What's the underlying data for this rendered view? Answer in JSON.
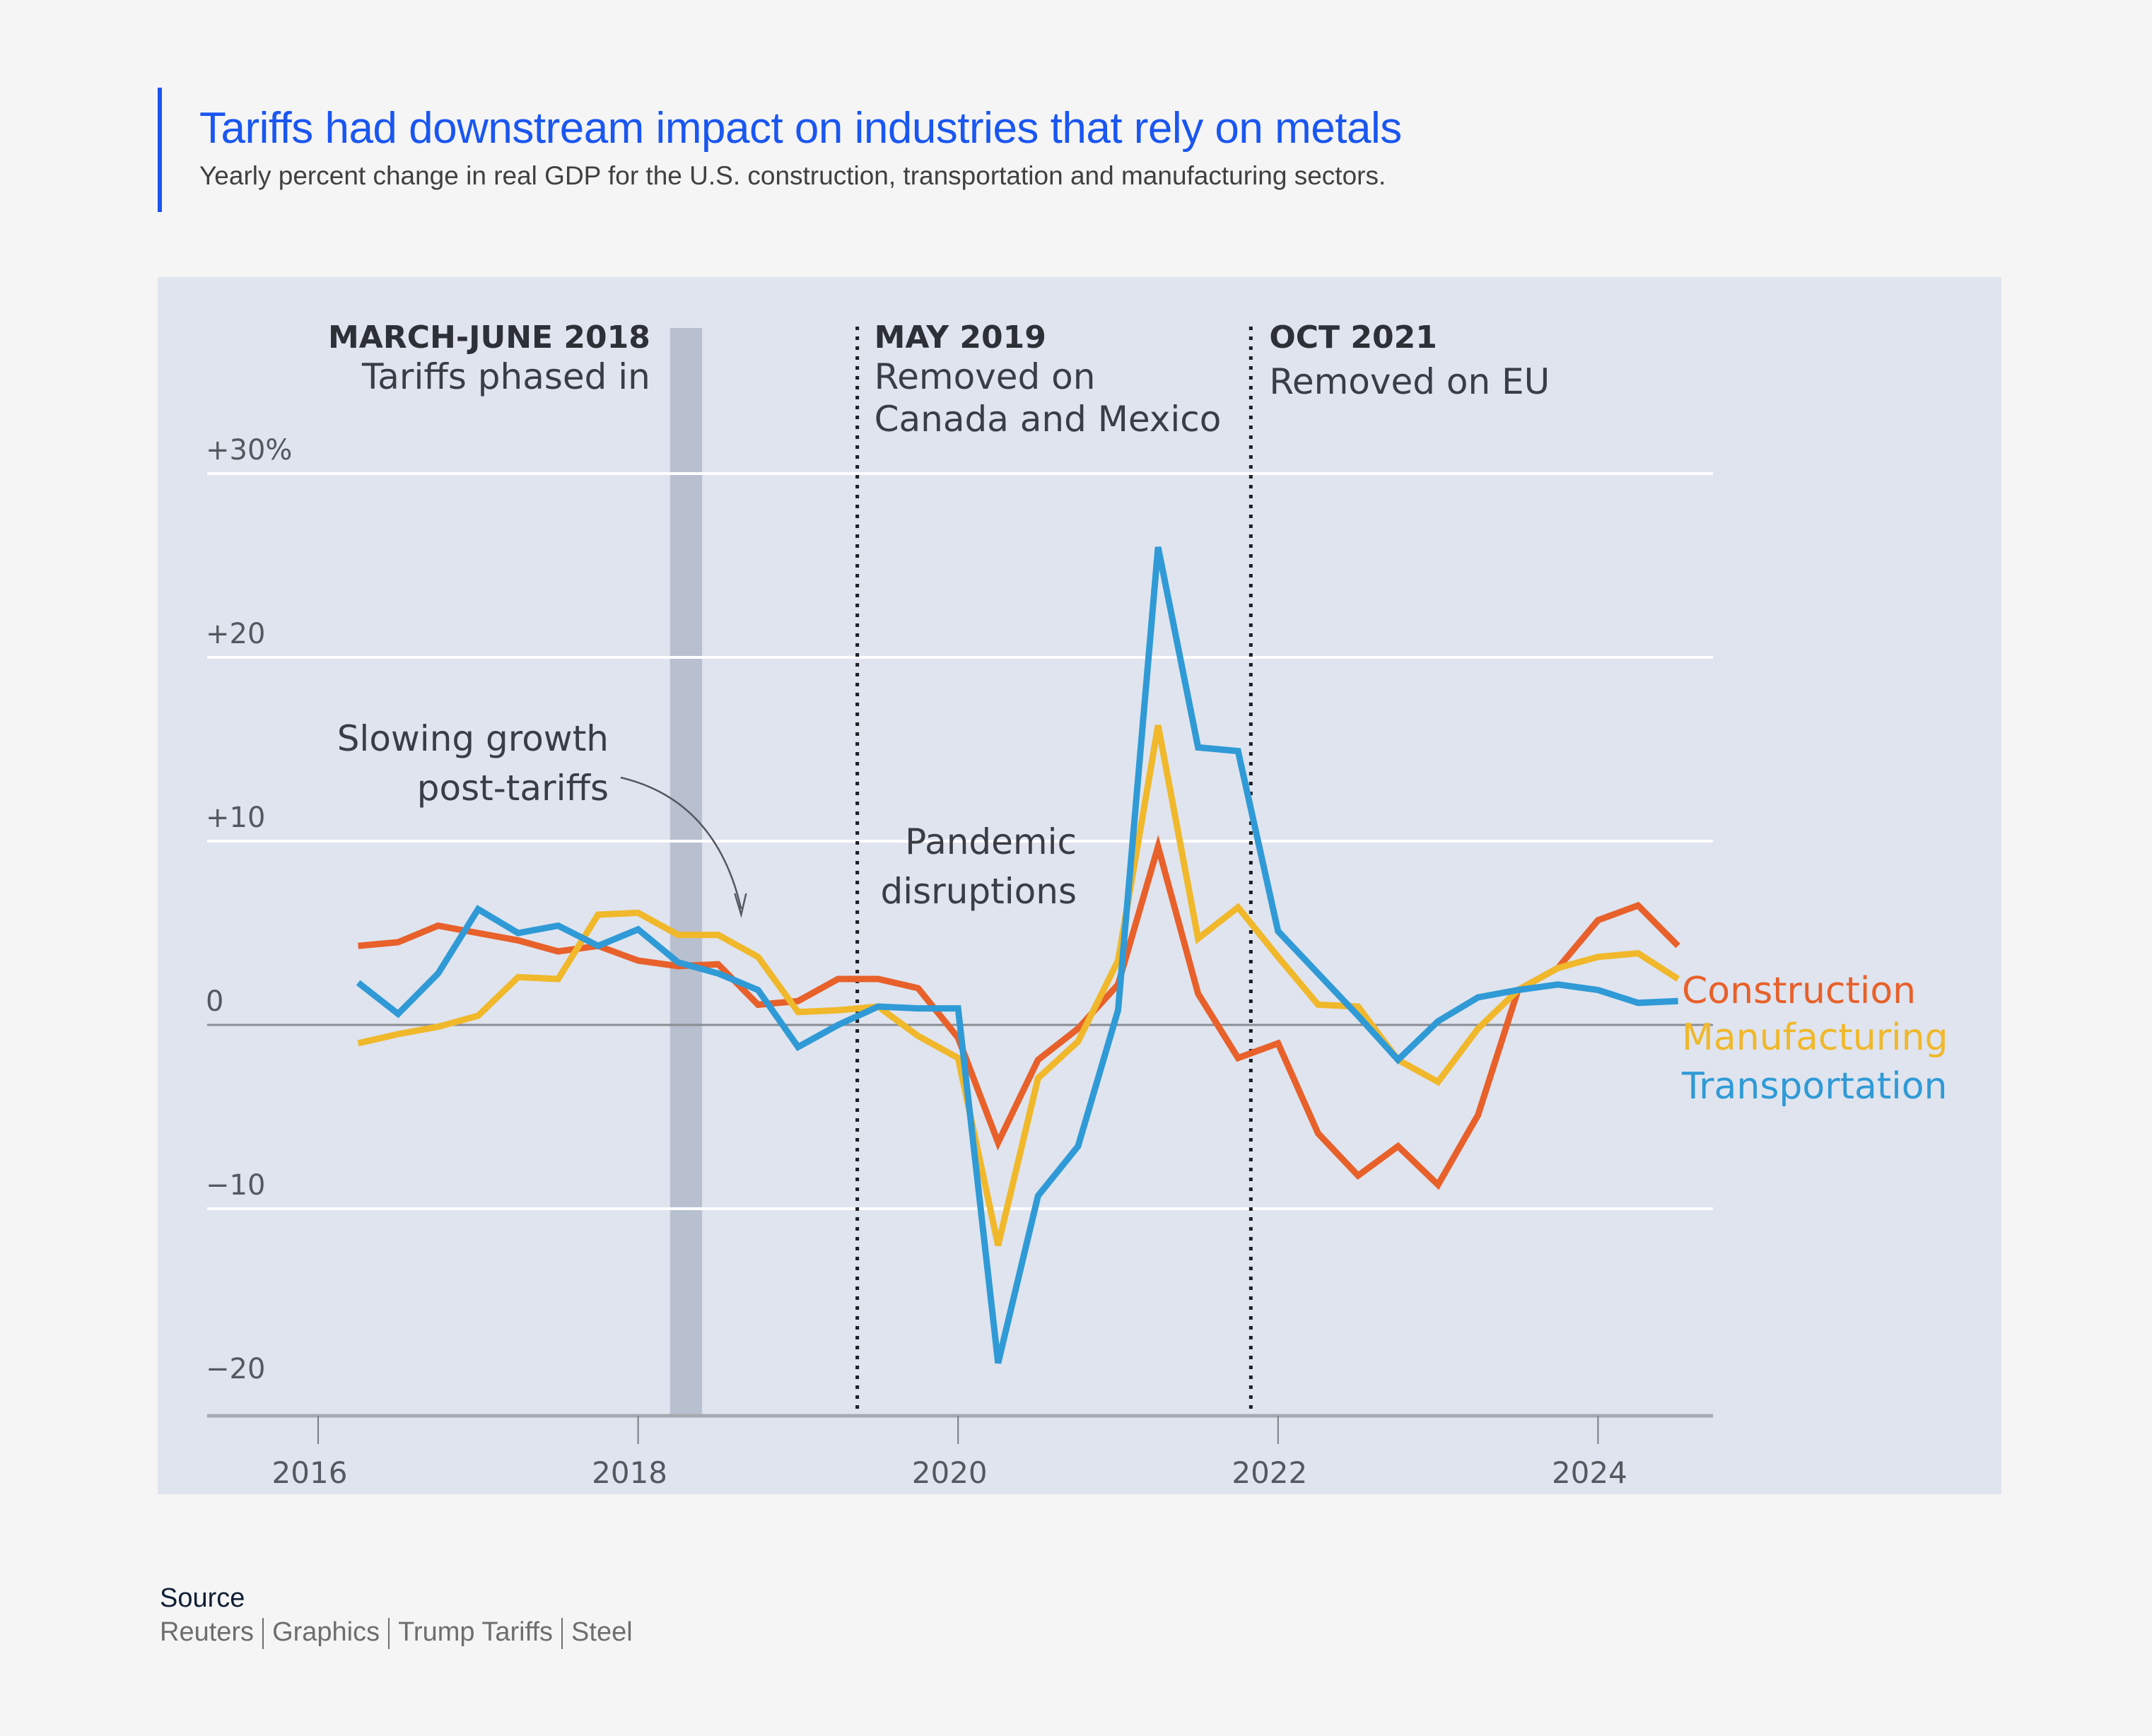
{
  "header": {
    "title": "Tariffs had downstream impact on industries that rely on metals",
    "subtitle": "Yearly percent change in real GDP for the U.S. construction, transportation and manufacturing sectors."
  },
  "footer": {
    "source_label": "Source",
    "links": [
      "Reuters",
      "Graphics",
      "Trump Tariffs",
      "Steel"
    ]
  },
  "colors": {
    "accent": "#1a56f0",
    "construction": "#e8602a",
    "manufacturing": "#f0b82a",
    "transportation": "#2f9ad6",
    "shaded_band": "#b8bfcf",
    "panel": "#dfe4ee"
  },
  "chart_data": {
    "type": "line",
    "title": "Tariffs had downstream impact on industries that rely on metals",
    "subtitle": "Yearly percent change in real GDP for the U.S. construction, transportation and manufacturing sectors.",
    "xlabel": "",
    "ylabel": "",
    "x_start": 2016.25,
    "x_step": 0.25,
    "xlim": [
      2015.0,
      2024.75
    ],
    "ylim": [
      -20,
      30
    ],
    "yticks": [
      {
        "value": 30,
        "label": "+30%"
      },
      {
        "value": 20,
        "label": "+20"
      },
      {
        "value": 10,
        "label": "+10"
      },
      {
        "value": 0,
        "label": "0"
      },
      {
        "value": -10,
        "label": "−10"
      },
      {
        "value": -20,
        "label": "−20"
      }
    ],
    "xticks": [
      {
        "value": 2016,
        "label": "2016"
      },
      {
        "value": 2018,
        "label": "2018"
      },
      {
        "value": 2020,
        "label": "2020"
      },
      {
        "value": 2022,
        "label": "2022"
      },
      {
        "value": 2024,
        "label": "2024"
      }
    ],
    "grid": true,
    "legend": "right (inline labels at line ends)",
    "series": [
      {
        "name": "Construction",
        "color_key": "construction",
        "values": [
          4.3,
          4.5,
          5.4,
          5.0,
          4.6,
          4.0,
          4.3,
          3.5,
          3.2,
          3.3,
          1.1,
          1.3,
          2.5,
          2.5,
          2.0,
          -0.7,
          -6.4,
          -1.9,
          -0.2,
          2.2,
          9.7,
          1.7,
          -1.8,
          -1.0,
          -5.9,
          -8.2,
          -6.6,
          -8.7,
          -4.9,
          1.9,
          3.1,
          5.7,
          6.5,
          4.3
        ]
      },
      {
        "name": "Manufacturing",
        "color_key": "manufacturing",
        "values": [
          -1.0,
          -0.5,
          -0.1,
          0.5,
          2.6,
          2.5,
          6.0,
          6.1,
          4.9,
          4.9,
          3.7,
          0.7,
          0.8,
          1.0,
          -0.6,
          -1.8,
          -12.0,
          -2.9,
          -0.9,
          3.5,
          16.3,
          4.7,
          6.4,
          3.7,
          1.1,
          1.0,
          -1.9,
          -3.1,
          -0.2,
          1.9,
          3.1,
          3.7,
          3.9,
          2.5
        ]
      },
      {
        "name": "Transportation",
        "color_key": "transportation",
        "values": [
          2.3,
          0.6,
          2.8,
          6.3,
          5.0,
          5.4,
          4.3,
          5.2,
          3.4,
          2.8,
          1.9,
          -1.2,
          0.0,
          1.0,
          0.9,
          0.9,
          -18.4,
          -9.3,
          -6.6,
          0.8,
          26.0,
          15.1,
          14.9,
          5.1,
          2.8,
          0.5,
          -1.9,
          0.2,
          1.5,
          1.9,
          2.2,
          1.9,
          1.2,
          1.3
        ]
      }
    ],
    "annotations": [
      {
        "type": "band",
        "x_from": 2018.2,
        "x_to": 2018.4,
        "heading": "MARCH-JUNE 2018",
        "text": [
          "Tariffs phased in"
        ]
      },
      {
        "type": "vline",
        "x": 2019.37,
        "heading": "MAY 2019",
        "text": [
          "Removed on",
          "Canada and Mexico"
        ]
      },
      {
        "type": "vline",
        "x": 2021.83,
        "heading": "OCT 2021",
        "text": [
          "Removed on EU"
        ]
      },
      {
        "type": "note",
        "text": [
          "Slowing growth",
          "post-tariffs"
        ],
        "arrow_to_x": 2018.6,
        "arrow_to_y": 6
      },
      {
        "type": "note",
        "text": [
          "Pandemic",
          "disruptions"
        ]
      }
    ]
  }
}
